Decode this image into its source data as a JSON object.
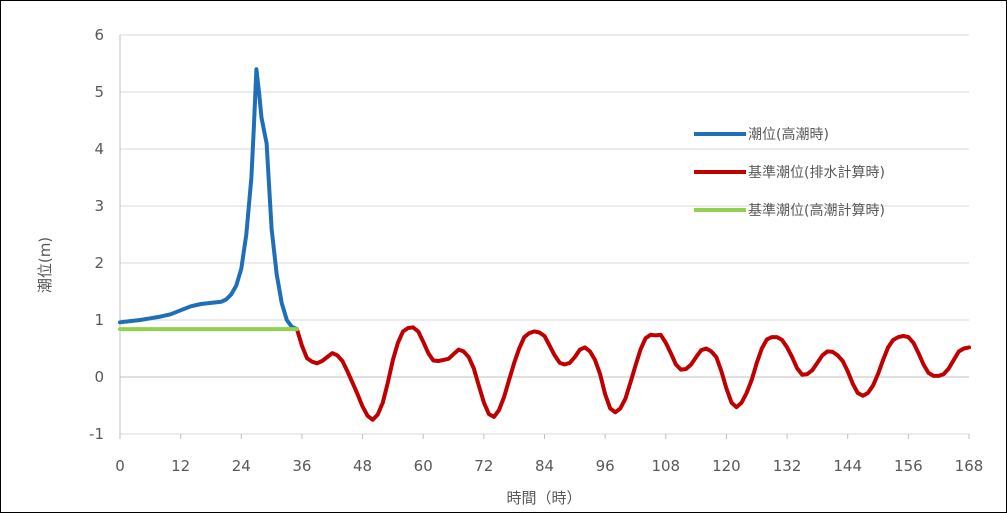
{
  "chart_data": {
    "type": "line",
    "xlabel": "時間（時）",
    "ylabel": "潮位(m)",
    "xlim": [
      0,
      168
    ],
    "ylim": [
      -1,
      6
    ],
    "x_ticks": [
      "0",
      "12",
      "24",
      "36",
      "48",
      "60",
      "72",
      "84",
      "96",
      "108",
      "120",
      "132",
      "144",
      "156",
      "168"
    ],
    "y_ticks": [
      "-1",
      "0",
      "1",
      "2",
      "3",
      "4",
      "5",
      "6"
    ],
    "grid": "horizontal",
    "legend_position": "right",
    "series": [
      {
        "name": "潮位(高潮時)",
        "color": "#1f6fb8",
        "points": [
          [
            0,
            0.96
          ],
          [
            2,
            0.98
          ],
          [
            4,
            1.0
          ],
          [
            6,
            1.03
          ],
          [
            8,
            1.06
          ],
          [
            10,
            1.1
          ],
          [
            12,
            1.17
          ],
          [
            14,
            1.24
          ],
          [
            16,
            1.28
          ],
          [
            18,
            1.3
          ],
          [
            20,
            1.32
          ],
          [
            21,
            1.36
          ],
          [
            22,
            1.45
          ],
          [
            23,
            1.6
          ],
          [
            24,
            1.9
          ],
          [
            25,
            2.5
          ],
          [
            26,
            3.5
          ],
          [
            26.5,
            4.4
          ],
          [
            27,
            5.4
          ],
          [
            27.5,
            5.0
          ],
          [
            28,
            4.55
          ],
          [
            29,
            4.1
          ],
          [
            30,
            2.6
          ],
          [
            31,
            1.8
          ],
          [
            32,
            1.3
          ],
          [
            33,
            1.0
          ],
          [
            34,
            0.88
          ],
          [
            35,
            0.84
          ]
        ]
      },
      {
        "name": "基準潮位(排水計算時)",
        "color": "#c00000",
        "points": [
          [
            35,
            0.84
          ],
          [
            36,
            0.55
          ],
          [
            37,
            0.33
          ],
          [
            38,
            0.27
          ],
          [
            39,
            0.24
          ],
          [
            40,
            0.28
          ],
          [
            41,
            0.35
          ],
          [
            42,
            0.42
          ],
          [
            43,
            0.38
          ],
          [
            44,
            0.28
          ],
          [
            45,
            0.1
          ],
          [
            46,
            -0.1
          ],
          [
            47,
            -0.3
          ],
          [
            48,
            -0.52
          ],
          [
            49,
            -0.68
          ],
          [
            50,
            -0.75
          ],
          [
            51,
            -0.66
          ],
          [
            52,
            -0.45
          ],
          [
            53,
            -0.1
          ],
          [
            54,
            0.3
          ],
          [
            55,
            0.6
          ],
          [
            56,
            0.8
          ],
          [
            57,
            0.86
          ],
          [
            58,
            0.87
          ],
          [
            59,
            0.8
          ],
          [
            60,
            0.62
          ],
          [
            61,
            0.42
          ],
          [
            62,
            0.29
          ],
          [
            63,
            0.28
          ],
          [
            64,
            0.3
          ],
          [
            65,
            0.32
          ],
          [
            66,
            0.4
          ],
          [
            67,
            0.48
          ],
          [
            68,
            0.45
          ],
          [
            69,
            0.35
          ],
          [
            70,
            0.15
          ],
          [
            71,
            -0.15
          ],
          [
            72,
            -0.45
          ],
          [
            73,
            -0.65
          ],
          [
            74,
            -0.7
          ],
          [
            75,
            -0.58
          ],
          [
            76,
            -0.35
          ],
          [
            77,
            -0.05
          ],
          [
            78,
            0.25
          ],
          [
            79,
            0.5
          ],
          [
            80,
            0.7
          ],
          [
            81,
            0.77
          ],
          [
            82,
            0.8
          ],
          [
            83,
            0.78
          ],
          [
            84,
            0.72
          ],
          [
            85,
            0.55
          ],
          [
            86,
            0.38
          ],
          [
            87,
            0.25
          ],
          [
            88,
            0.22
          ],
          [
            89,
            0.25
          ],
          [
            90,
            0.35
          ],
          [
            91,
            0.48
          ],
          [
            92,
            0.52
          ],
          [
            93,
            0.45
          ],
          [
            94,
            0.3
          ],
          [
            95,
            0.05
          ],
          [
            96,
            -0.3
          ],
          [
            97,
            -0.55
          ],
          [
            98,
            -0.62
          ],
          [
            99,
            -0.55
          ],
          [
            100,
            -0.38
          ],
          [
            101,
            -0.1
          ],
          [
            102,
            0.2
          ],
          [
            103,
            0.48
          ],
          [
            104,
            0.68
          ],
          [
            105,
            0.74
          ],
          [
            106,
            0.73
          ],
          [
            107,
            0.74
          ],
          [
            108,
            0.6
          ],
          [
            109,
            0.42
          ],
          [
            110,
            0.22
          ],
          [
            111,
            0.13
          ],
          [
            112,
            0.14
          ],
          [
            113,
            0.22
          ],
          [
            114,
            0.35
          ],
          [
            115,
            0.47
          ],
          [
            116,
            0.5
          ],
          [
            117,
            0.45
          ],
          [
            118,
            0.35
          ],
          [
            119,
            0.1
          ],
          [
            120,
            -0.2
          ],
          [
            121,
            -0.45
          ],
          [
            122,
            -0.53
          ],
          [
            123,
            -0.45
          ],
          [
            124,
            -0.28
          ],
          [
            125,
            -0.05
          ],
          [
            126,
            0.25
          ],
          [
            127,
            0.5
          ],
          [
            128,
            0.66
          ],
          [
            129,
            0.7
          ],
          [
            130,
            0.7
          ],
          [
            131,
            0.65
          ],
          [
            132,
            0.52
          ],
          [
            133,
            0.35
          ],
          [
            134,
            0.15
          ],
          [
            135,
            0.04
          ],
          [
            136,
            0.05
          ],
          [
            137,
            0.12
          ],
          [
            138,
            0.25
          ],
          [
            139,
            0.38
          ],
          [
            140,
            0.45
          ],
          [
            141,
            0.44
          ],
          [
            142,
            0.38
          ],
          [
            143,
            0.28
          ],
          [
            144,
            0.1
          ],
          [
            145,
            -0.12
          ],
          [
            146,
            -0.28
          ],
          [
            147,
            -0.33
          ],
          [
            148,
            -0.28
          ],
          [
            149,
            -0.15
          ],
          [
            150,
            0.05
          ],
          [
            151,
            0.3
          ],
          [
            152,
            0.52
          ],
          [
            153,
            0.65
          ],
          [
            154,
            0.7
          ],
          [
            155,
            0.72
          ],
          [
            156,
            0.7
          ],
          [
            157,
            0.6
          ],
          [
            158,
            0.42
          ],
          [
            159,
            0.22
          ],
          [
            160,
            0.07
          ],
          [
            161,
            0.02
          ],
          [
            162,
            0.02
          ],
          [
            163,
            0.05
          ],
          [
            164,
            0.15
          ],
          [
            165,
            0.3
          ],
          [
            166,
            0.45
          ],
          [
            167,
            0.5
          ],
          [
            168,
            0.52
          ]
        ]
      },
      {
        "name": "基準潮位(高潮計算時)",
        "color": "#92d050",
        "points": [
          [
            0,
            0.84
          ],
          [
            35,
            0.84
          ]
        ]
      }
    ]
  }
}
